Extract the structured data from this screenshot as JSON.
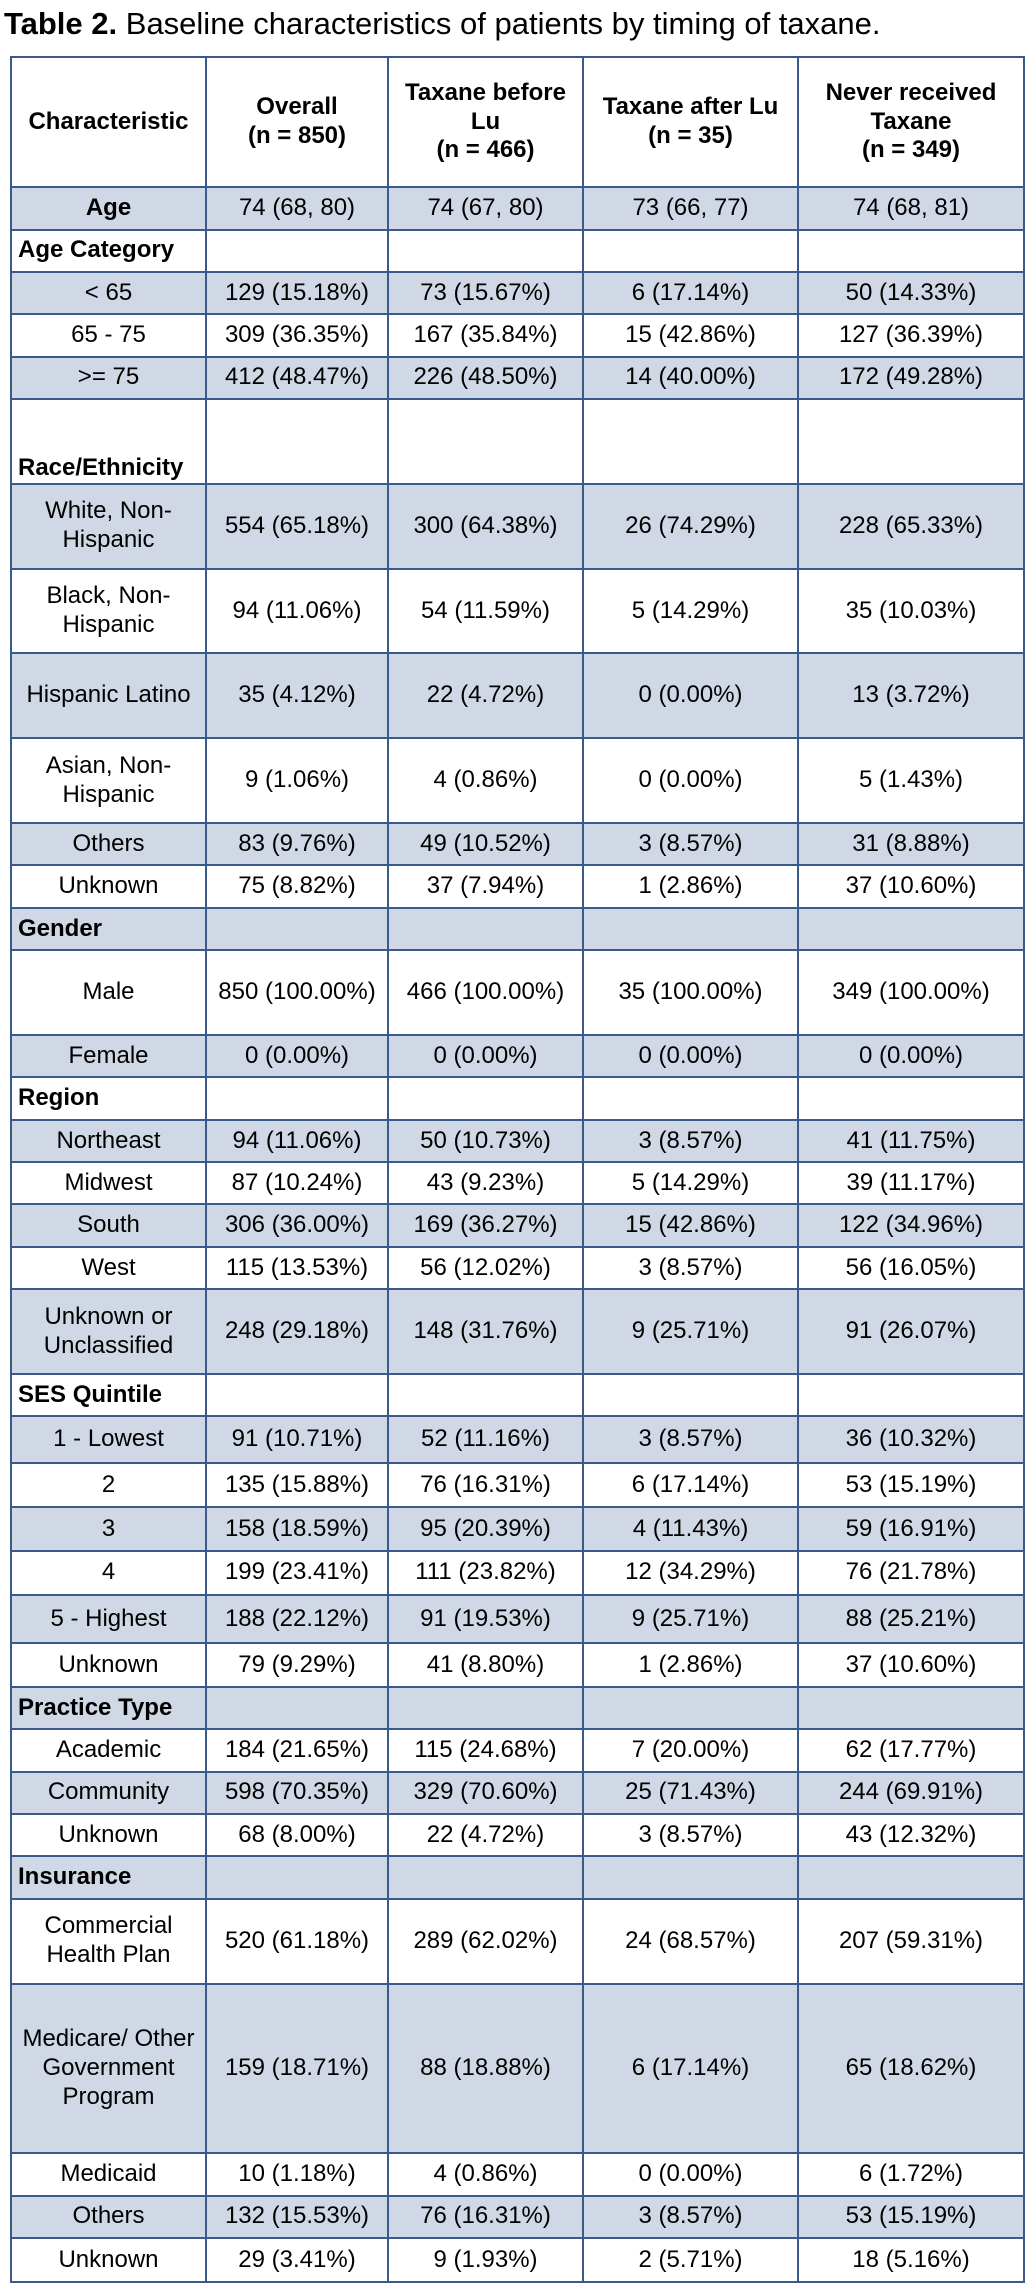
{
  "title_label": "Table 2.",
  "title": "Baseline characteristics of patients by timing of taxane.",
  "table": {
    "header": [
      [
        "Characteristic"
      ],
      [
        "Overall",
        "(n = 850)"
      ],
      [
        "Taxane before",
        "Lu",
        "(n = 466)"
      ],
      [
        "Taxane after Lu",
        "(n = 35)"
      ],
      [
        "Never received",
        "Taxane",
        "(n = 349)"
      ]
    ],
    "rows": [
      [
        "Age",
        "74 (68, 80)",
        "74 (67, 80)",
        "73 (66, 77)",
        "74 (68, 81)"
      ],
      [
        "Age Category"
      ],
      [
        "< 65",
        "129 (15.18%)",
        "73 (15.67%)",
        "6 (17.14%)",
        "50 (14.33%)"
      ],
      [
        "65 - 75",
        "309 (36.35%)",
        "167 (35.84%)",
        "15 (42.86%)",
        "127 (36.39%)"
      ],
      [
        ">= 75",
        "412 (48.47%)",
        "226 (48.50%)",
        "14 (40.00%)",
        "172 (49.28%)"
      ],
      [
        "Race/Ethnicity"
      ],
      [
        "White, Non-Hispanic",
        "554 (65.18%)",
        "300 (64.38%)",
        "26 (74.29%)",
        "228 (65.33%)"
      ],
      [
        "Black, Non-Hispanic",
        "94 (11.06%)",
        "54 (11.59%)",
        "5 (14.29%)",
        "35 (10.03%)"
      ],
      [
        "Hispanic Latino",
        "35 (4.12%)",
        "22 (4.72%)",
        "0 (0.00%)",
        "13 (3.72%)"
      ],
      [
        "Asian, Non-Hispanic",
        "9 (1.06%)",
        "4 (0.86%)",
        "0 (0.00%)",
        "5 (1.43%)"
      ],
      [
        "Others",
        "83 (9.76%)",
        "49 (10.52%)",
        "3 (8.57%)",
        "31 (8.88%)"
      ],
      [
        "Unknown",
        "75 (8.82%)",
        "37 (7.94%)",
        "1 (2.86%)",
        "37 (10.60%)"
      ],
      [
        "Gender"
      ],
      [
        "Male",
        "850 (100.00%)",
        "466 (100.00%)",
        "35 (100.00%)",
        "349 (100.00%)"
      ],
      [
        "Female",
        "0 (0.00%)",
        "0 (0.00%)",
        "0 (0.00%)",
        "0 (0.00%)"
      ],
      [
        "Region"
      ],
      [
        "Northeast",
        "94 (11.06%)",
        "50 (10.73%)",
        "3 (8.57%)",
        "41 (11.75%)"
      ],
      [
        "Midwest",
        "87 (10.24%)",
        "43 (9.23%)",
        "5 (14.29%)",
        "39 (11.17%)"
      ],
      [
        "South",
        "306 (36.00%)",
        "169 (36.27%)",
        "15 (42.86%)",
        "122 (34.96%)"
      ],
      [
        "West",
        "115 (13.53%)",
        "56 (12.02%)",
        "3 (8.57%)",
        "56 (16.05%)"
      ],
      [
        "Unknown or Unclassified",
        "248 (29.18%)",
        "148 (31.76%)",
        "9 (25.71%)",
        "91 (26.07%)"
      ],
      [
        "SES Quintile"
      ],
      [
        "1 - Lowest",
        "91 (10.71%)",
        "52 (11.16%)",
        "3 (8.57%)",
        "36 (10.32%)"
      ],
      [
        "2",
        "135 (15.88%)",
        "76 (16.31%)",
        "6 (17.14%)",
        "53 (15.19%)"
      ],
      [
        "3",
        "158 (18.59%)",
        "95 (20.39%)",
        "4 (11.43%)",
        "59 (16.91%)"
      ],
      [
        "4",
        "199 (23.41%)",
        "111 (23.82%)",
        "12 (34.29%)",
        "76 (21.78%)"
      ],
      [
        "5 - Highest",
        "188 (22.12%)",
        "91 (19.53%)",
        "9 (25.71%)",
        "88 (25.21%)"
      ],
      [
        "Unknown",
        "79 (9.29%)",
        "41 (8.80%)",
        "1 (2.86%)",
        "37 (10.60%)"
      ],
      [
        "Practice Type"
      ],
      [
        "Academic",
        "184 (21.65%)",
        "115 (24.68%)",
        "7 (20.00%)",
        "62 (17.77%)"
      ],
      [
        "Community",
        "598 (70.35%)",
        "329 (70.60%)",
        "25 (71.43%)",
        "244 (69.91%)"
      ],
      [
        "Unknown",
        "68 (8.00%)",
        "22 (4.72%)",
        "3 (8.57%)",
        "43 (12.32%)"
      ],
      [
        "Insurance"
      ],
      [
        "Commercial Health Plan",
        "520 (61.18%)",
        "289 (62.02%)",
        "24 (68.57%)",
        "207 (59.31%)"
      ],
      [
        "Medicare/ Other Government Program",
        "159 (18.71%)",
        "88 (18.88%)",
        "6 (17.14%)",
        "65 (18.62%)"
      ],
      [
        "Medicaid",
        "10 (1.18%)",
        "4 (0.86%)",
        "0 (0.00%)",
        "6 (1.72%)"
      ],
      [
        "Others",
        "132 (15.53%)",
        "76 (16.31%)",
        "3 (8.57%)",
        "53 (15.19%)"
      ],
      [
        "Unknown",
        "29 (3.41%)",
        "9 (1.93%)",
        "2 (5.71%)",
        "18 (5.16%)"
      ]
    ]
  }
}
